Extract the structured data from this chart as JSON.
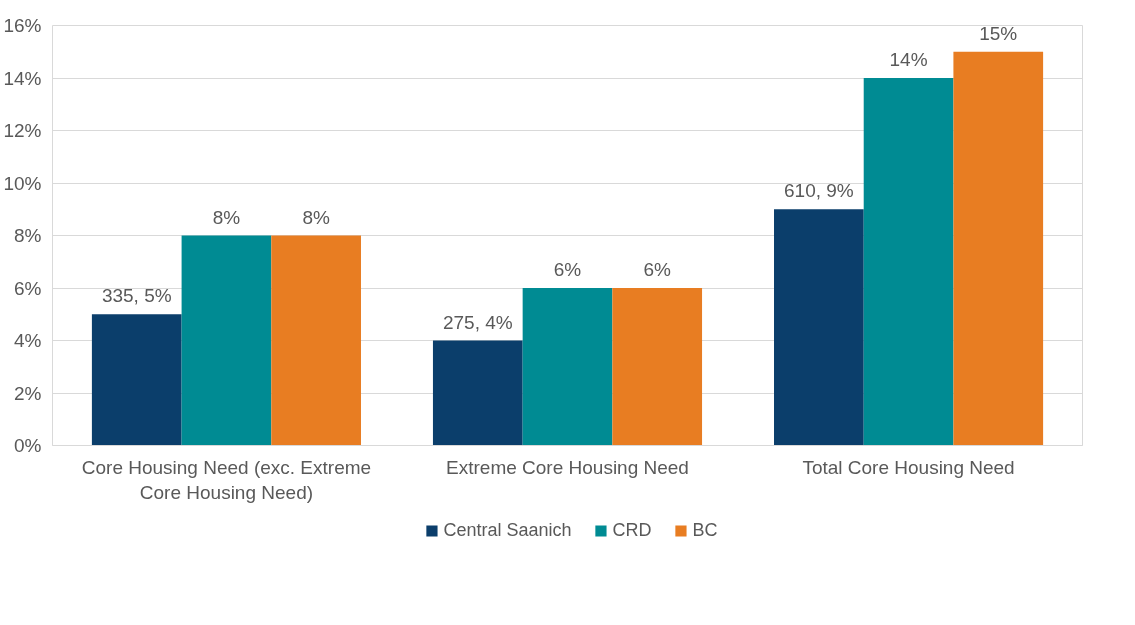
{
  "chart_data": {
    "type": "bar",
    "categories": [
      "Core Housing Need (exc. Extreme Core Housing Need)",
      "Extreme Core Housing Need",
      "Total Core Housing Need"
    ],
    "series": [
      {
        "name": "Central Saanich",
        "color": "#0b3e6b",
        "values": [
          5,
          4,
          9
        ],
        "value_labels": [
          "335, 5%",
          "275, 4%",
          "610, 9%"
        ]
      },
      {
        "name": "CRD",
        "color": "#008b93",
        "values": [
          8,
          6,
          14
        ],
        "value_labels": [
          "8%",
          "6%",
          "14%"
        ]
      },
      {
        "name": "BC",
        "color": "#e87d22",
        "values": [
          8,
          6,
          15
        ],
        "value_labels": [
          "8%",
          "6%",
          "15%"
        ]
      }
    ],
    "ylim": [
      0,
      16
    ],
    "yticks": [
      {
        "value": 0,
        "label": "0%"
      },
      {
        "value": 2,
        "label": "2%"
      },
      {
        "value": 4,
        "label": "4%"
      },
      {
        "value": 6,
        "label": "6%"
      },
      {
        "value": 8,
        "label": "8%"
      },
      {
        "value": 10,
        "label": "10%"
      },
      {
        "value": 12,
        "label": "12%"
      },
      {
        "value": 14,
        "label": "14%"
      },
      {
        "value": 16,
        "label": "16%"
      }
    ],
    "grid": "y",
    "legend": "bottom"
  }
}
